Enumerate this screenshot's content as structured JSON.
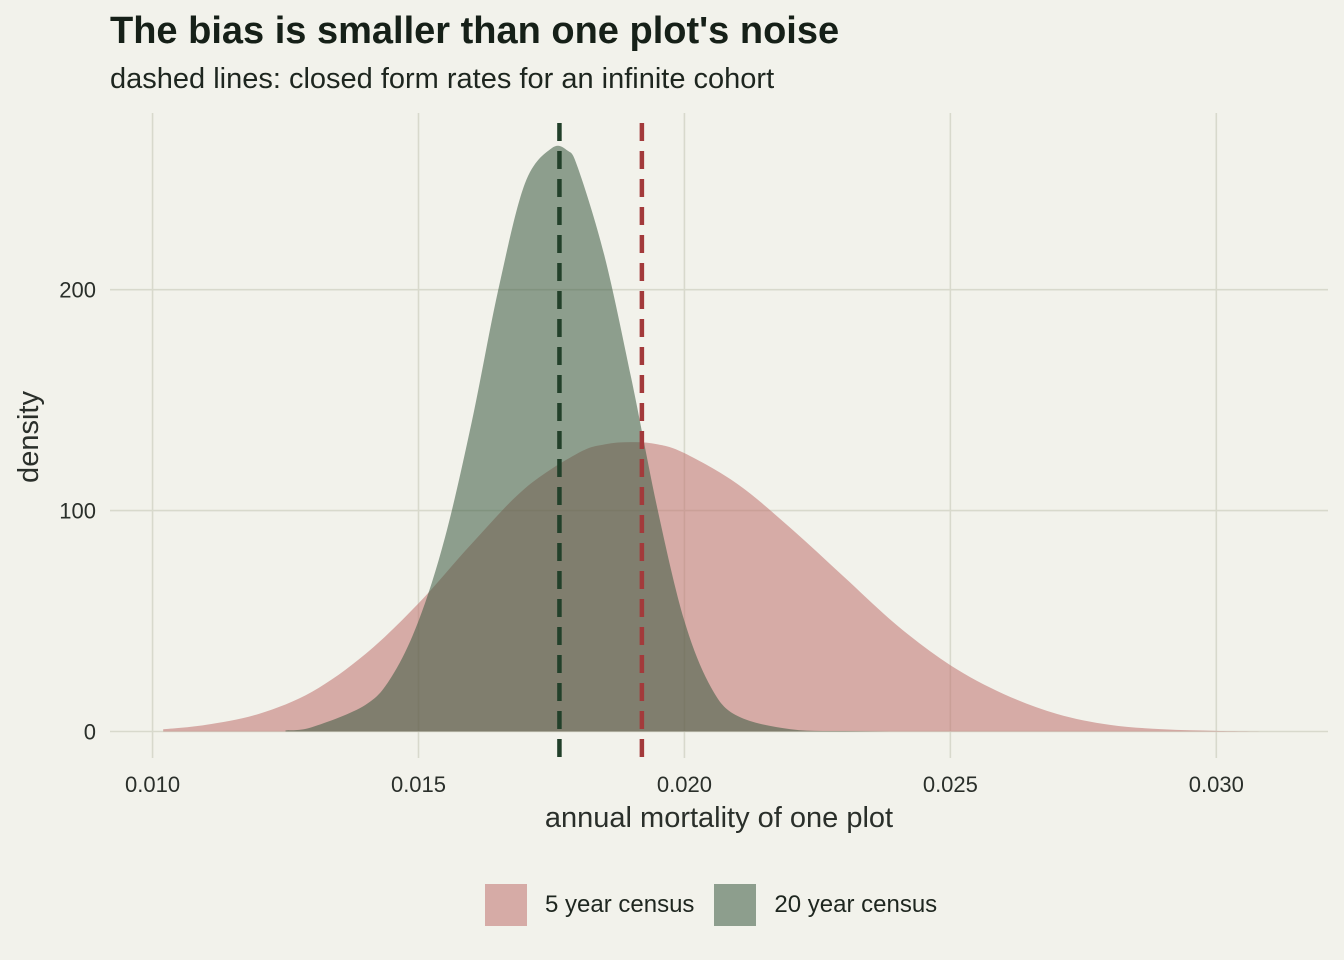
{
  "title": "The bias is smaller than one plot's noise",
  "subtitle": "dashed lines: closed form rates for an infinite cohort",
  "chart_data": {
    "type": "area",
    "title": "The bias is smaller than one plot's noise",
    "subtitle": "dashed lines: closed form rates for an infinite cohort",
    "xlabel": "annual mortality of one plot",
    "ylabel": "density",
    "xlim": [
      0.0092,
      0.0321
    ],
    "ylim": [
      -12,
      280
    ],
    "x_ticks": [
      0.01,
      0.015,
      0.02,
      0.025,
      0.03
    ],
    "x_tick_labels": [
      "0.010",
      "0.015",
      "0.020",
      "0.025",
      "0.030"
    ],
    "y_ticks": [
      0,
      100,
      200
    ],
    "y_tick_labels": [
      "0",
      "100",
      "200"
    ],
    "grid": true,
    "legend_position": "bottom",
    "series": [
      {
        "name": "5 year census",
        "color": "#c0716d",
        "x": [
          0.0102,
          0.011,
          0.012,
          0.013,
          0.014,
          0.015,
          0.016,
          0.017,
          0.018,
          0.0185,
          0.019,
          0.0195,
          0.02,
          0.021,
          0.022,
          0.023,
          0.024,
          0.025,
          0.026,
          0.027,
          0.028,
          0.029,
          0.03,
          0.031
        ],
        "y": [
          1,
          3,
          8,
          18,
          35,
          58,
          85,
          110,
          126,
          130,
          131,
          130,
          126,
          112,
          92,
          70,
          48,
          30,
          17,
          8,
          3,
          1,
          0.3,
          0
        ]
      },
      {
        "name": "20 year census",
        "color": "#3b5a40",
        "x": [
          0.0125,
          0.013,
          0.014,
          0.0145,
          0.015,
          0.0155,
          0.016,
          0.0165,
          0.017,
          0.0175,
          0.0178,
          0.018,
          0.0185,
          0.019,
          0.0195,
          0.02,
          0.0205,
          0.021,
          0.022,
          0.023,
          0.024,
          0.025
        ],
        "y": [
          0.5,
          2,
          12,
          25,
          50,
          88,
          140,
          200,
          248,
          264,
          263,
          255,
          215,
          160,
          100,
          50,
          20,
          7,
          1,
          0.2,
          0,
          0
        ]
      }
    ],
    "reference_lines": [
      {
        "series": "20 year census",
        "x": 0.01765,
        "color": "#22402a",
        "style": "dashed"
      },
      {
        "series": "5 year census",
        "x": 0.0192,
        "color": "#a33a3b",
        "style": "dashed"
      }
    ]
  }
}
